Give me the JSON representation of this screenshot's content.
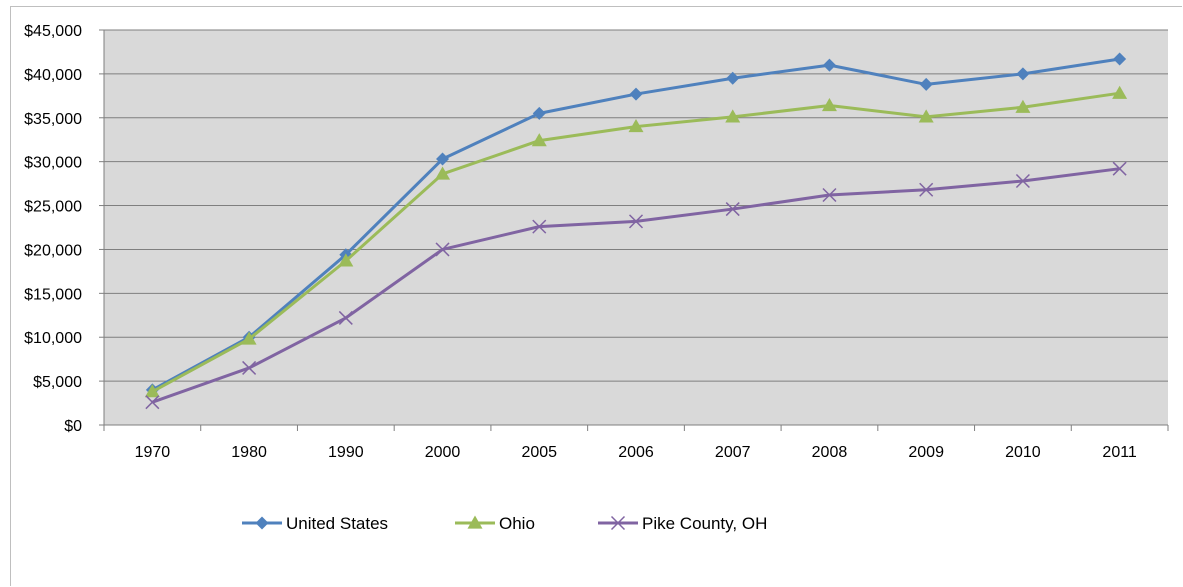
{
  "chart_data": {
    "type": "line",
    "title": "",
    "xlabel": "",
    "ylabel": "",
    "categories": [
      "1970",
      "1980",
      "1990",
      "2000",
      "2005",
      "2006",
      "2007",
      "2008",
      "2009",
      "2010",
      "2011"
    ],
    "y_ticks": [
      "$0",
      "$5,000",
      "$10,000",
      "$15,000",
      "$20,000",
      "$25,000",
      "$30,000",
      "$35,000",
      "$40,000",
      "$45,000"
    ],
    "ylim": [
      0,
      45000
    ],
    "grid": true,
    "legend_position": "bottom",
    "plot_background": "#d9d9d9",
    "series": [
      {
        "name": "United States",
        "color": "#4f81bd",
        "marker": "diamond",
        "values": [
          4000,
          10000,
          19400,
          30300,
          35500,
          37700,
          39500,
          41000,
          38800,
          40000,
          41700
        ]
      },
      {
        "name": "Ohio",
        "color": "#9bbb59",
        "marker": "triangle",
        "values": [
          3800,
          9800,
          18700,
          28600,
          32400,
          34000,
          35100,
          36400,
          35100,
          36200,
          37800
        ]
      },
      {
        "name": "Pike County, OH",
        "color": "#8064a2",
        "marker": "x",
        "values": [
          2600,
          6500,
          12200,
          20000,
          22600,
          23200,
          24600,
          26200,
          26800,
          27800,
          29200
        ]
      }
    ]
  }
}
